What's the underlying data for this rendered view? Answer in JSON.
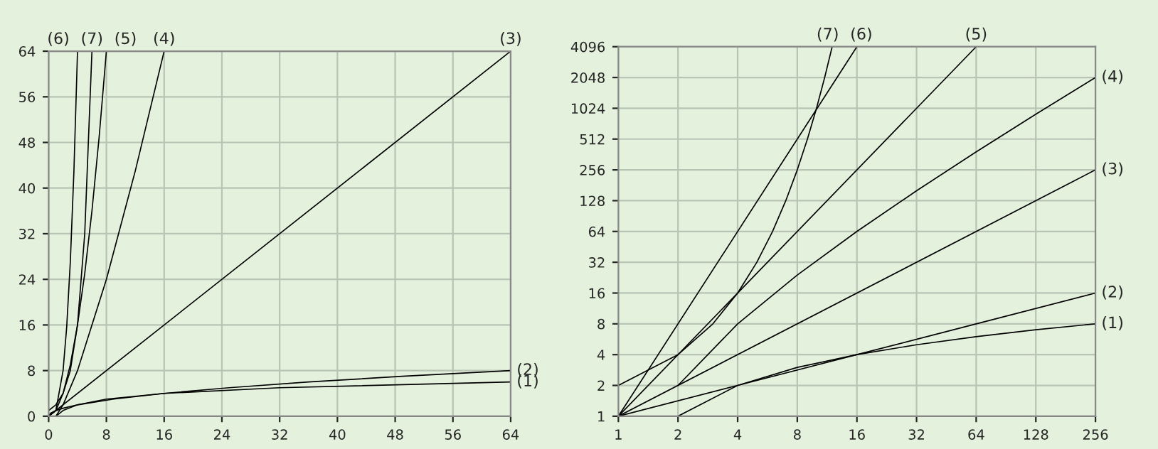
{
  "chart_data": [
    {
      "type": "line",
      "xlim": [
        0,
        64
      ],
      "ylim": [
        0,
        64
      ],
      "xticks": [
        0,
        8,
        16,
        24,
        32,
        40,
        48,
        56,
        64
      ],
      "yticks": [
        0,
        8,
        16,
        24,
        32,
        40,
        48,
        56,
        64
      ],
      "grid": true,
      "series": [
        {
          "name": "(1)",
          "color": "#000000",
          "x": [
            1,
            2,
            4,
            8,
            16,
            32,
            64
          ],
          "values": [
            0,
            1,
            2,
            3,
            4,
            5,
            6
          ]
        },
        {
          "name": "(2)",
          "color": "#000000",
          "x": [
            0,
            0.25,
            1,
            2,
            4,
            9,
            16,
            25,
            36,
            49,
            64
          ],
          "values": [
            0,
            0.5,
            1,
            1.4,
            2,
            3,
            4,
            5,
            6,
            7,
            8
          ]
        },
        {
          "name": "(3)",
          "color": "#000000",
          "x": [
            0,
            64
          ],
          "values": [
            0,
            64
          ]
        },
        {
          "name": "(4)",
          "color": "#000000",
          "x": [
            1,
            2,
            4,
            8,
            12,
            16
          ],
          "values": [
            0,
            2,
            8,
            24,
            43,
            64
          ]
        },
        {
          "name": "(5)",
          "color": "#000000",
          "x": [
            0,
            1,
            2,
            3,
            4,
            5,
            6,
            7,
            8
          ],
          "values": [
            0,
            1,
            4,
            9,
            16,
            25,
            36,
            49,
            64
          ]
        },
        {
          "name": "(6)",
          "color": "#000000",
          "x": [
            0,
            1,
            2,
            2.5,
            3,
            3.5,
            4
          ],
          "values": [
            0,
            1,
            8,
            15.6,
            27,
            42.9,
            64
          ]
        },
        {
          "name": "(7)",
          "color": "#000000",
          "x": [
            0,
            1,
            2,
            3,
            4,
            5,
            6
          ],
          "values": [
            1,
            2,
            4,
            8,
            16,
            32,
            64
          ]
        }
      ]
    },
    {
      "type": "line",
      "log": "xy",
      "xlim": [
        1,
        256
      ],
      "ylim": [
        1,
        4096
      ],
      "xticks": [
        1,
        2,
        4,
        8,
        16,
        32,
        64,
        128,
        256
      ],
      "yticks": [
        1,
        2,
        4,
        8,
        16,
        32,
        64,
        128,
        256,
        512,
        1024,
        2048,
        4096
      ],
      "grid": true,
      "series": [
        {
          "name": "(1)",
          "color": "#000000",
          "x": [
            2,
            4,
            8,
            16,
            32,
            64,
            128,
            256
          ],
          "values": [
            1,
            2,
            3,
            4,
            5,
            6,
            7,
            8
          ]
        },
        {
          "name": "(2)",
          "color": "#000000",
          "x": [
            1,
            4,
            16,
            64,
            256
          ],
          "values": [
            1,
            2,
            4,
            8,
            16
          ]
        },
        {
          "name": "(3)",
          "color": "#000000",
          "x": [
            1,
            256
          ],
          "values": [
            1,
            256
          ]
        },
        {
          "name": "(4)",
          "color": "#000000",
          "x": [
            2,
            4,
            8,
            16,
            32,
            64,
            128,
            256
          ],
          "values": [
            2,
            8,
            24,
            64,
            160,
            384,
            896,
            2048
          ]
        },
        {
          "name": "(5)",
          "color": "#000000",
          "x": [
            1,
            64
          ],
          "values": [
            1,
            4096
          ]
        },
        {
          "name": "(6)",
          "color": "#000000",
          "x": [
            1,
            16
          ],
          "values": [
            1,
            4096
          ]
        },
        {
          "name": "(7)",
          "color": "#000000",
          "x": [
            1,
            2,
            3,
            4,
            5,
            6,
            7,
            8,
            9,
            10,
            11,
            12
          ],
          "values": [
            2,
            4,
            8,
            16,
            32,
            64,
            128,
            256,
            512,
            1024,
            2048,
            4096
          ]
        }
      ]
    }
  ]
}
